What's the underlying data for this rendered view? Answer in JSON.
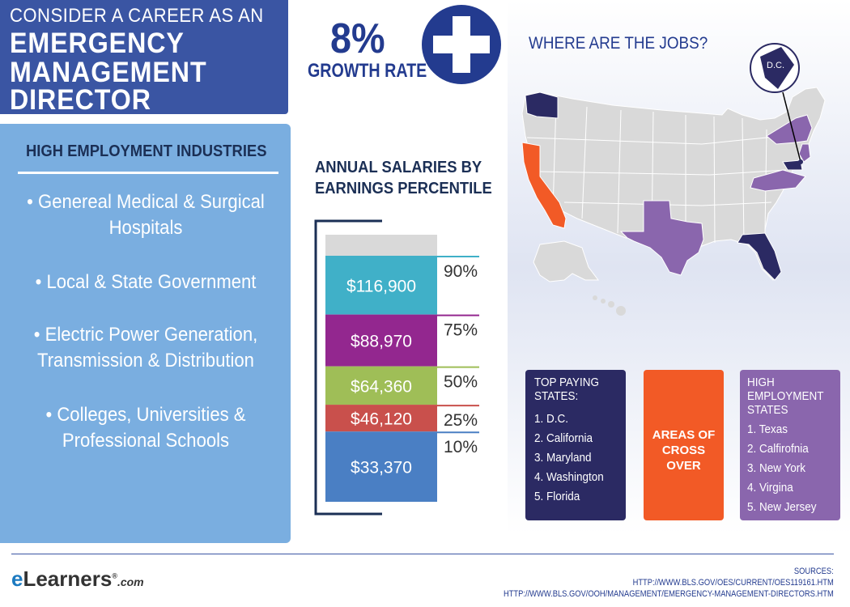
{
  "header": {
    "line1": "CONSIDER A CAREER AS AN",
    "line2": "EMERGENCY",
    "line3": "MANAGEMENT",
    "line4": "DIRECTOR"
  },
  "growth": {
    "value": "8%",
    "label": "GROWTH RATE"
  },
  "industries": {
    "title": "HIGH EMPLOYMENT INDUSTRIES",
    "items": [
      {
        "line1": "• Genereal Medical & Surgical",
        "line2": "Hospitals"
      },
      {
        "line1": "• Local & State Government",
        "line2": ""
      },
      {
        "line1": "• Electric Power Generation,",
        "line2": "Transmission & Distribution"
      },
      {
        "line1": "• Colleges, Universities &",
        "line2": "Professional Schools"
      }
    ]
  },
  "chart_data": {
    "type": "bar",
    "title": "ANNUAL SALARIES BY EARNINGS PERCENTILE",
    "title_line1": "ANNUAL SALARIES BY",
    "title_line2": "EARNINGS PERCENTILE",
    "categories": [
      "90%",
      "75%",
      "50%",
      "25%",
      "10%"
    ],
    "values": [
      116900,
      88970,
      64360,
      46120,
      33370
    ],
    "value_labels": [
      "$116,900",
      "$88,970",
      "$64,360",
      "$46,120",
      "$33,370"
    ],
    "colors": [
      "#40b0c8",
      "#93278f",
      "#9fbe57",
      "#c9504c",
      "#4a7fc4"
    ],
    "top_color": "#d9d9d9"
  },
  "map": {
    "title": "WHERE ARE THE JOBS?",
    "dc_label": "D.C.",
    "colors": {
      "top_paying": "#2b2a63",
      "cross_over": "#f25a26",
      "high_employment": "#8a66ad",
      "base": "#d9d9d9"
    }
  },
  "legend": {
    "top_paying": {
      "head": [
        "TOP PAYING",
        "STATES:"
      ],
      "items": [
        "1. D.C.",
        "2. California",
        "3. Maryland",
        "4. Washington",
        "5. Florida"
      ]
    },
    "cross_over": {
      "label_line1": "AREAS OF",
      "label_line2": "CROSS OVER"
    },
    "high_employment": {
      "head": [
        "HIGH",
        "EMPLOYMENT",
        "STATES"
      ],
      "items": [
        "1. Texas",
        "2. Calfirofnia",
        "3. New York",
        "4. Virgina",
        "5. New Jersey"
      ]
    }
  },
  "footer": {
    "logo_e": "e",
    "logo_rest": "Learners",
    "logo_reg": "®",
    "logo_com": ".com",
    "sources_label": "SOURCES:",
    "source1": "HTTP://WWW.BLS.GOV/OES/CURRENT/OES119161.HTM",
    "source2": "HTTP://WWW.BLS.GOV/OOH/MANAGEMENT/EMERGENCY-MANAGEMENT-DIRECTORS.HTM"
  }
}
